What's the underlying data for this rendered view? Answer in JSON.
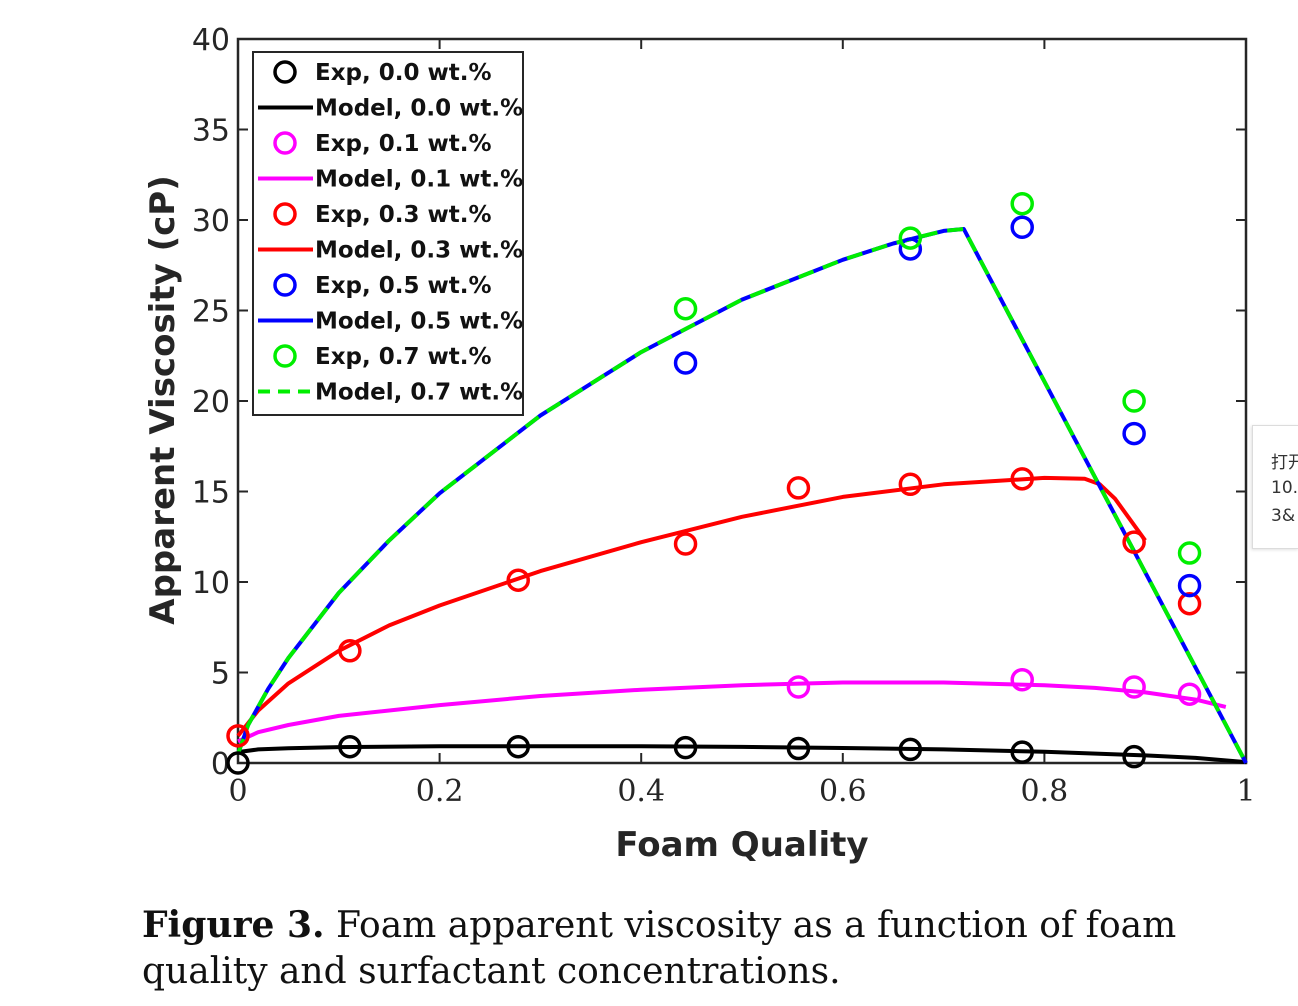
{
  "chart_data": {
    "type": "line",
    "xlabel": "Foam Quality",
    "ylabel": "Apparent Viscosity (cP)",
    "xlim": [
      0,
      1
    ],
    "ylim": [
      0,
      40
    ],
    "xticks": [
      "0",
      "0.2",
      "0.4",
      "0.6",
      "0.8",
      "1"
    ],
    "xtick_values": [
      0,
      0.2,
      0.4,
      0.6,
      0.8,
      1
    ],
    "yticks": [
      "0",
      "5",
      "10",
      "15",
      "20",
      "25",
      "30",
      "35",
      "40"
    ],
    "ytick_values": [
      0,
      5,
      10,
      15,
      20,
      25,
      30,
      35,
      40
    ],
    "legend_position": "top-left",
    "series": [
      {
        "name": "Exp, 0.0 wt.%",
        "kind": "scatter",
        "color": "#000000",
        "x": [
          0,
          0.111,
          0.278,
          0.444,
          0.556,
          0.667,
          0.778,
          0.889
        ],
        "y": [
          0,
          0.9,
          0.9,
          0.85,
          0.8,
          0.75,
          0.6,
          0.35
        ]
      },
      {
        "name": "Model, 0.0 wt.%",
        "kind": "line",
        "color": "#000000",
        "dash": false,
        "x": [
          0,
          0.02,
          0.05,
          0.1,
          0.2,
          0.3,
          0.4,
          0.5,
          0.6,
          0.7,
          0.8,
          0.9,
          0.95,
          1.0
        ],
        "y": [
          0.6,
          0.75,
          0.82,
          0.88,
          0.92,
          0.93,
          0.92,
          0.89,
          0.83,
          0.75,
          0.62,
          0.42,
          0.28,
          0.05
        ]
      },
      {
        "name": "Exp, 0.1 wt.%",
        "kind": "scatter",
        "color": "#ff00ff",
        "x": [
          0.556,
          0.778,
          0.889,
          0.944
        ],
        "y": [
          4.2,
          4.6,
          4.2,
          3.8
        ]
      },
      {
        "name": "Model, 0.1 wt.%",
        "kind": "line",
        "color": "#ff00ff",
        "dash": false,
        "x": [
          0,
          0.02,
          0.05,
          0.1,
          0.2,
          0.3,
          0.4,
          0.5,
          0.6,
          0.7,
          0.8,
          0.85,
          0.9,
          0.95,
          0.98
        ],
        "y": [
          1.2,
          1.7,
          2.1,
          2.6,
          3.2,
          3.7,
          4.05,
          4.3,
          4.45,
          4.45,
          4.3,
          4.15,
          3.9,
          3.5,
          3.1
        ]
      },
      {
        "name": "Exp, 0.3 wt.%",
        "kind": "scatter",
        "color": "#ff0000",
        "x": [
          0,
          0.111,
          0.278,
          0.444,
          0.556,
          0.667,
          0.778,
          0.889,
          0.944
        ],
        "y": [
          1.5,
          6.2,
          10.1,
          12.1,
          15.2,
          15.4,
          15.7,
          12.2,
          8.8
        ]
      },
      {
        "name": "Model, 0.3 wt.%",
        "kind": "line",
        "color": "#ff0000",
        "dash": false,
        "x": [
          0,
          0.02,
          0.05,
          0.1,
          0.15,
          0.2,
          0.3,
          0.4,
          0.5,
          0.6,
          0.7,
          0.8,
          0.84,
          0.855,
          0.87,
          0.9
        ],
        "y": [
          1.5,
          2.9,
          4.4,
          6.2,
          7.6,
          8.7,
          10.6,
          12.2,
          13.6,
          14.7,
          15.4,
          15.75,
          15.7,
          15.4,
          14.6,
          12.3
        ]
      },
      {
        "name": "Exp, 0.5 wt.%",
        "kind": "scatter",
        "color": "#0000ff",
        "x": [
          0.444,
          0.667,
          0.778,
          0.889,
          0.944
        ],
        "y": [
          22.1,
          28.4,
          29.6,
          18.2,
          9.8
        ]
      },
      {
        "name": "Model, 0.5 wt.%",
        "kind": "line",
        "color": "#0000ff",
        "dash": false,
        "x": [
          0,
          0.01,
          0.03,
          0.05,
          0.1,
          0.15,
          0.2,
          0.3,
          0.4,
          0.5,
          0.6,
          0.65,
          0.7,
          0.72,
          1.0
        ],
        "y": [
          0.5,
          2.1,
          4.1,
          5.8,
          9.4,
          12.3,
          14.9,
          19.2,
          22.7,
          25.6,
          27.8,
          28.7,
          29.4,
          29.5,
          0
        ]
      },
      {
        "name": "Exp, 0.7 wt.%",
        "kind": "scatter",
        "color": "#00ee00",
        "x": [
          0.444,
          0.667,
          0.778,
          0.889,
          0.944
        ],
        "y": [
          25.1,
          29.0,
          30.9,
          20.0,
          11.6
        ]
      },
      {
        "name": "Model, 0.7 wt.%",
        "kind": "line",
        "color": "#00ee00",
        "dash": true,
        "x": [
          0,
          0.01,
          0.03,
          0.05,
          0.1,
          0.15,
          0.2,
          0.3,
          0.4,
          0.5,
          0.6,
          0.65,
          0.7,
          0.72,
          1.0
        ],
        "y": [
          0.5,
          2.1,
          4.1,
          5.8,
          9.4,
          12.3,
          14.9,
          19.2,
          22.7,
          25.6,
          27.8,
          28.7,
          29.4,
          29.5,
          0
        ]
      }
    ]
  },
  "caption": {
    "label": "Figure 3.",
    "text": " Foam apparent viscosity as a function of foam quality and surfactant concentrations."
  },
  "side_popup": {
    "lines": [
      "打开",
      "10.",
      "3&"
    ]
  }
}
